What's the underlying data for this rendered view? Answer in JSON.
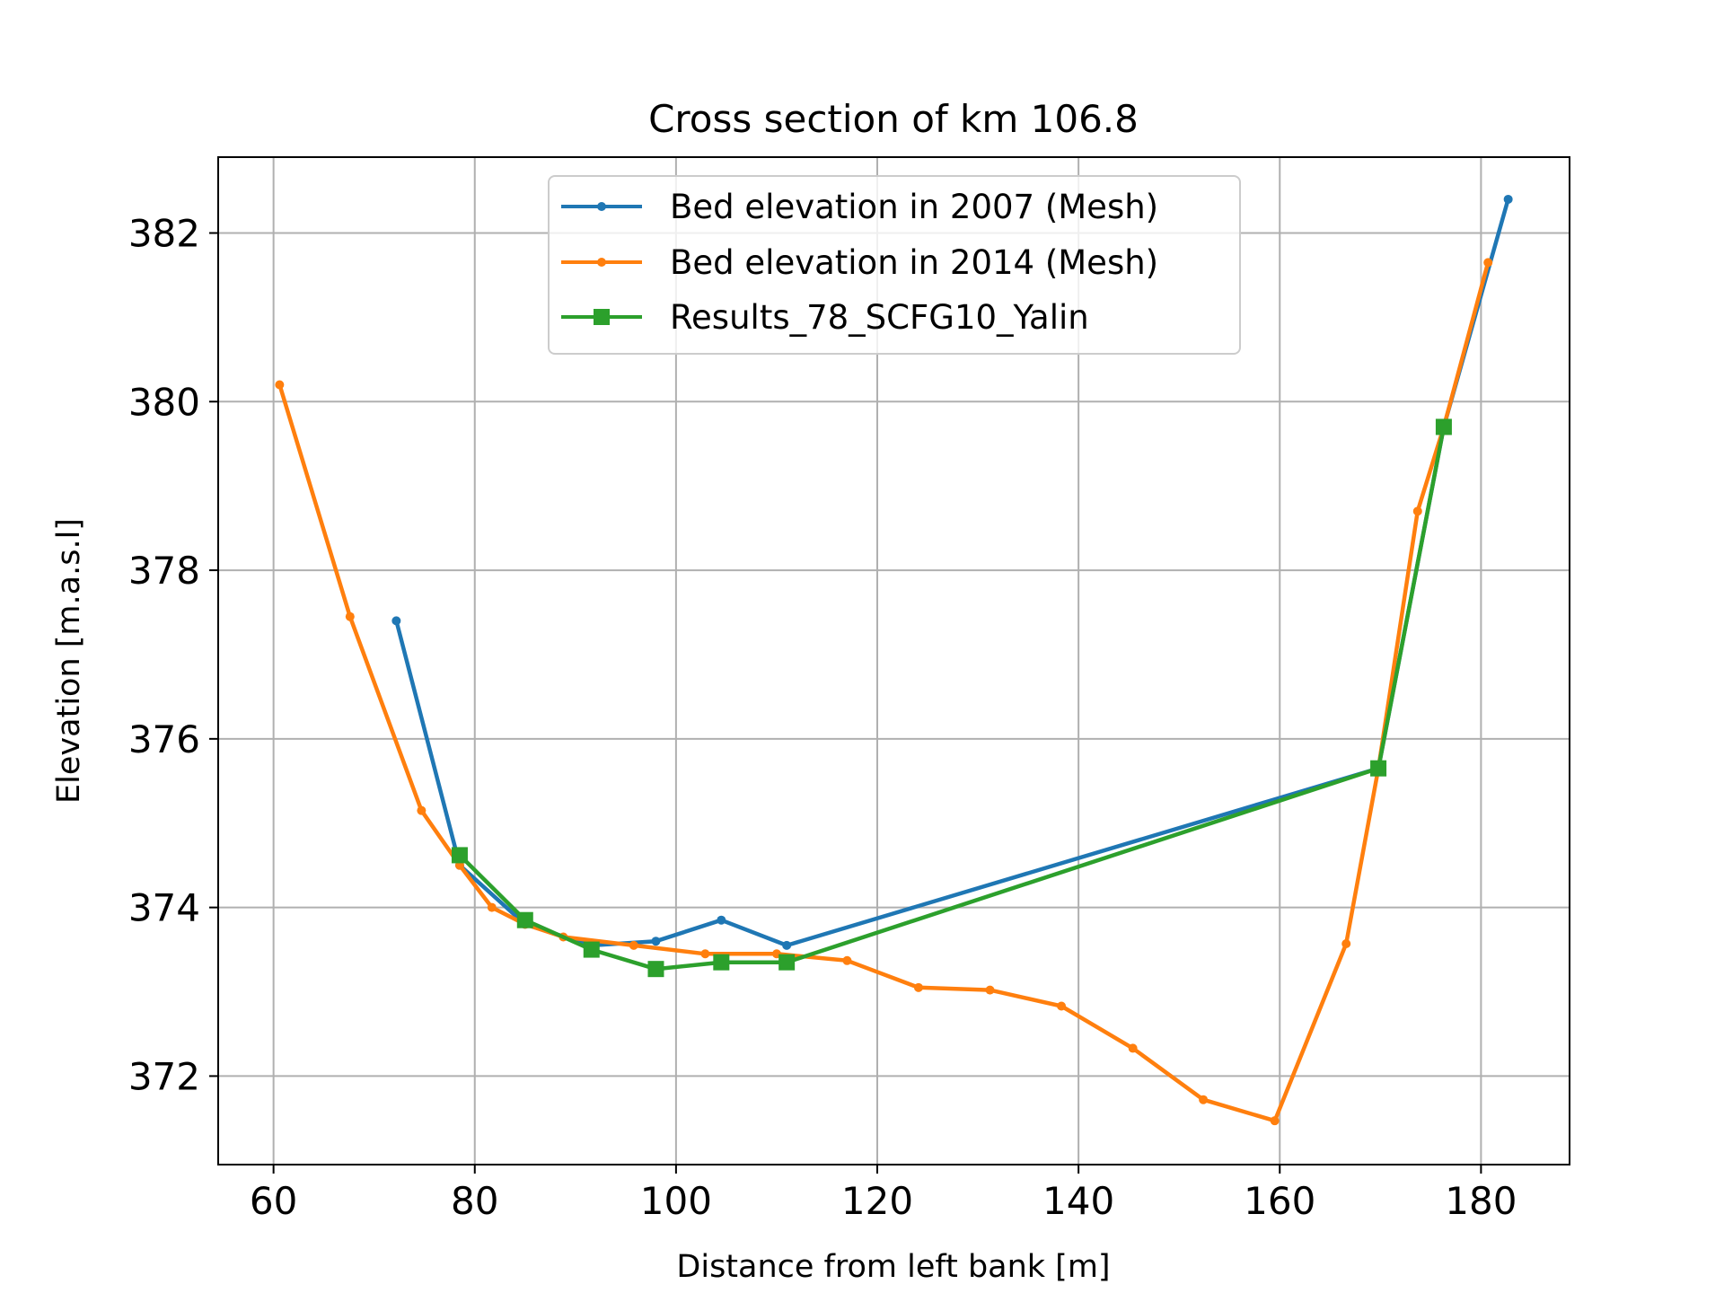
{
  "chart_data": {
    "type": "line",
    "title": "Cross section of km 106.8",
    "xlabel": "Distance from left bank [m]",
    "ylabel": "Elevation [m.a.s.l]",
    "xlim": [
      54.5,
      188.8
    ],
    "ylim": [
      370.95,
      382.9
    ],
    "xticks": [
      60,
      80,
      100,
      120,
      140,
      160,
      180
    ],
    "yticks": [
      372,
      374,
      376,
      378,
      380,
      382
    ],
    "xtick_labels": [
      "60",
      "80",
      "100",
      "120",
      "140",
      "160",
      "180"
    ],
    "ytick_labels": [
      "372",
      "374",
      "376",
      "378",
      "380",
      "382"
    ],
    "grid": true,
    "legend_position": "top-center",
    "series": [
      {
        "name": "Bed elevation in 2007 (Mesh)",
        "color": "#1f77b4",
        "marker": "dot",
        "x": [
          72.2,
          78.5,
          85.0,
          91.6,
          98.0,
          104.5,
          111.0,
          169.8,
          176.3,
          182.7
        ],
        "y": [
          377.4,
          374.5,
          373.8,
          373.55,
          373.6,
          373.85,
          373.55,
          375.65,
          379.7,
          382.4
        ]
      },
      {
        "name": "Bed elevation in 2014 (Mesh)",
        "color": "#ff7f0e",
        "marker": "dot",
        "x": [
          60.6,
          67.6,
          74.7,
          78.5,
          81.7,
          85.0,
          88.8,
          95.8,
          102.9,
          110.0,
          117.0,
          124.1,
          131.2,
          138.3,
          145.4,
          152.4,
          159.5,
          166.6,
          169.8,
          173.7,
          176.3,
          180.7
        ],
        "y": [
          380.2,
          377.45,
          375.15,
          374.5,
          374.0,
          373.8,
          373.65,
          373.55,
          373.45,
          373.45,
          373.37,
          373.05,
          373.02,
          372.83,
          372.33,
          371.72,
          371.47,
          373.57,
          375.65,
          378.7,
          379.7,
          381.65
        ]
      },
      {
        "name": "Results_78_SCFG10_Yalin",
        "color": "#2ca02c",
        "marker": "square",
        "x": [
          78.5,
          85.0,
          91.6,
          98.0,
          104.5,
          111.0,
          169.8,
          176.3
        ],
        "y": [
          374.62,
          373.85,
          373.5,
          373.27,
          373.35,
          373.35,
          375.65,
          379.7
        ]
      }
    ]
  }
}
